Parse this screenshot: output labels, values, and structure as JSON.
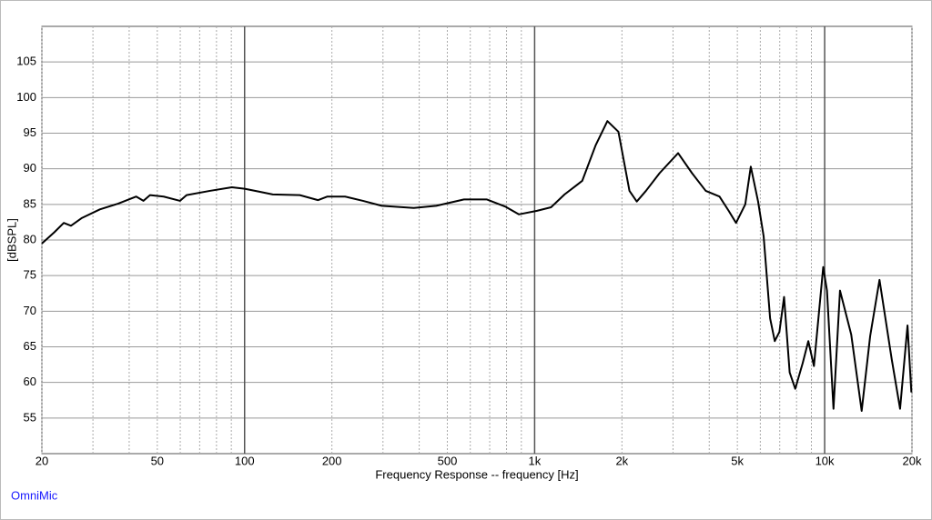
{
  "chart_data": {
    "type": "line",
    "x_label": "Frequency Response -- frequency [Hz]",
    "y_label": "[dBSPL]",
    "watermark": "OmniMic",
    "log_x": true,
    "grid": true,
    "color": "#000000",
    "xlim": [
      20,
      20000
    ],
    "ylim": [
      50,
      110
    ],
    "xticks": [
      20,
      50,
      100,
      200,
      500,
      {
        "value": 1000,
        "label": "1k"
      },
      {
        "value": 2000,
        "label": "2k"
      },
      {
        "value": 5000,
        "label": "5k"
      },
      {
        "value": 10000,
        "label": "10k"
      },
      {
        "value": 20000,
        "label": "20k"
      }
    ],
    "x_minor_ticks": [
      30,
      40,
      60,
      70,
      80,
      90,
      300,
      400,
      600,
      700,
      800,
      900,
      3000,
      4000,
      6000,
      7000,
      8000,
      9000
    ],
    "yticks": [
      55,
      60,
      65,
      70,
      75,
      80,
      85,
      90,
      95,
      100,
      105
    ],
    "x": [
      20,
      22.1,
      23.8,
      25.2,
      27.5,
      31.7,
      36.6,
      42.3,
      44.8,
      47.2,
      52.6,
      59.9,
      63.1,
      75.9,
      90.4,
      100,
      112,
      125,
      155,
      179,
      193,
      222,
      256,
      297,
      383,
      458,
      571,
      683,
      791,
      882,
      1019,
      1139,
      1268,
      1459,
      1623,
      1782,
      1945,
      2123,
      2250,
      2420,
      2698,
      3124,
      3487,
      3890,
      4339,
      4667,
      4948,
      5324,
      5563,
      5895,
      6161,
      6485,
      6729,
      6983,
      7245,
      7574,
      7917,
      8398,
      8782,
      9183,
      9886,
      10186,
      10726,
      11295,
      12350,
      13415,
      14350,
      15455,
      17022,
      18198,
      19306,
      19900
    ],
    "values": [
      79.5,
      81.1,
      82.4,
      82.0,
      83.1,
      84.3,
      85.1,
      86.1,
      85.5,
      86.3,
      86.1,
      85.5,
      86.3,
      86.9,
      87.4,
      87.2,
      86.8,
      86.4,
      86.3,
      85.6,
      86.1,
      86.1,
      85.5,
      84.8,
      84.5,
      84.8,
      85.7,
      85.7,
      84.7,
      83.6,
      84.1,
      84.6,
      86.4,
      88.3,
      93.3,
      96.7,
      95.2,
      86.9,
      85.4,
      86.9,
      89.4,
      92.2,
      89.4,
      86.9,
      86.1,
      84.1,
      82.4,
      85.0,
      90.3,
      85.4,
      80.5,
      69.0,
      65.8,
      67.1,
      72.0,
      61.4,
      59.1,
      62.7,
      65.8,
      62.3,
      76.2,
      72.9,
      56.3,
      72.9,
      66.7,
      56.0,
      66.5,
      74.4,
      63.3,
      56.3,
      68.0,
      58.6
    ]
  }
}
